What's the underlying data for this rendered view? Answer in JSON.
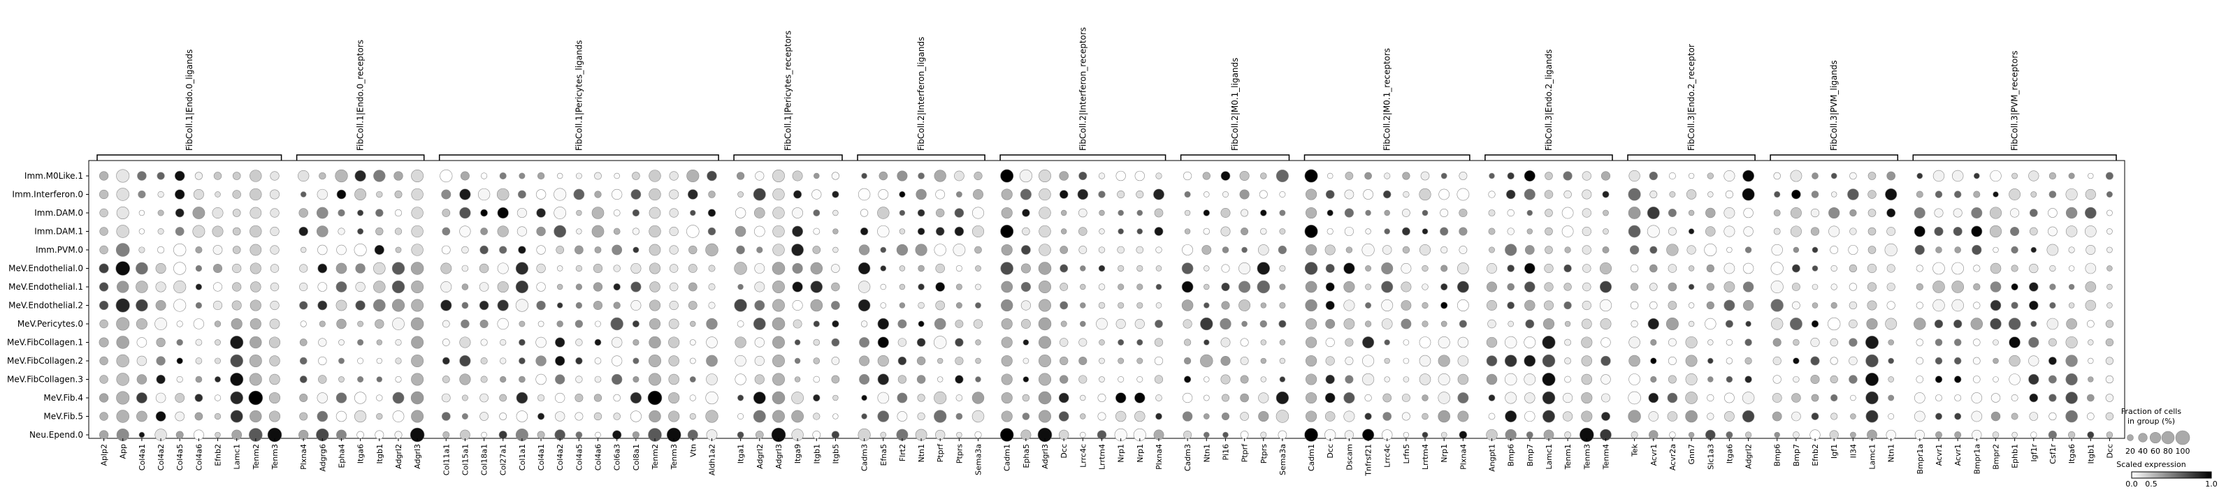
{
  "chart_data": {
    "type": "dotplot",
    "title": "",
    "xlabel": "",
    "ylabel": "",
    "rows": [
      "Imm.M0Like.1",
      "Imm.Interferon.0",
      "Imm.DAM.0",
      "Imm.DAM.1",
      "Imm.PVM.0",
      "MeV.Endothelial.0",
      "MeV.Endothelial.1",
      "MeV.Endothelial.2",
      "MeV.Pericytes.0",
      "MeV.FibCollagen.1",
      "MeV.FibCollagen.2",
      "MeV.FibCollagen.3",
      "MeV.Fib.4",
      "MeV.Fib.5",
      "Neu.Epend.0"
    ],
    "groups": [
      {
        "label": "FibColl.1|Endo.0_ligands",
        "genes": [
          "Aplp2",
          "App",
          "Col4a1",
          "Col4a2",
          "Col4a5",
          "Col4a6",
          "Efnb2",
          "Lamc1",
          "Tenm2",
          "Tenm3"
        ]
      },
      {
        "label": "FibColl.1|Endo.0_receptors",
        "genes": [
          "Plxna4",
          "Adgrg6",
          "Epha4",
          "Itga6",
          "Itgb1",
          "Adgrl2",
          "Adgrl3"
        ]
      },
      {
        "label": "FibColl.1|Pericytes_ligands",
        "genes": [
          "Col11a1",
          "Col15a1",
          "Col18a1",
          "Col27a1",
          "Col1a1",
          "Col4a1",
          "Col4a2",
          "Col4a5",
          "Col4a6",
          "Col6a3",
          "Col8a1",
          "Tenm2",
          "Tenm3",
          "Vtn",
          "Aldh1a2"
        ]
      },
      {
        "label": "FibColl.1|Pericytes_receptors",
        "genes": [
          "Itga1",
          "Adgrl2",
          "Adgrl3",
          "Itga9",
          "Itgb1",
          "Itgb5"
        ]
      },
      {
        "label": "FibColl.2|Interferon_ligands",
        "genes": [
          "Cadm3",
          "Efna5",
          "Flrt2",
          "Ntn1",
          "Ptprf",
          "Ptprs",
          "Sema3a"
        ]
      },
      {
        "label": "FibColl.2|Interferon_receptors",
        "genes": [
          "Cadm1",
          "Epha5",
          "Adgrl3",
          "Dcc",
          "Lrrc4c",
          "Lrrtm4",
          "Nrp1",
          "Nrp1",
          "Plxna4"
        ]
      },
      {
        "label": "FibColl.2|M0.1_ligands",
        "genes": [
          "Cadm3",
          "Ntn1",
          "Pi16",
          "Ptprf",
          "Ptprs",
          "Sema3a"
        ]
      },
      {
        "label": "FibColl.2|M0.1_receptors",
        "genes": [
          "Cadm1",
          "Dcc",
          "Dscam",
          "Tnfrsf21",
          "Lrrc4c",
          "Lrfn5",
          "Lrrtm4",
          "Nrp1",
          "Plxna4"
        ]
      },
      {
        "label": "FibColl.3|Endo.2_ligands",
        "genes": [
          "Angpt1",
          "Bmp6",
          "Bmp7",
          "Lamc1",
          "Tenm1",
          "Tenm3",
          "Tenm4"
        ]
      },
      {
        "label": "FibColl.3|Endo.2_receptor",
        "genes": [
          "Tek",
          "Acvr1",
          "Acvr2a",
          "Gnn7",
          "Slc1a3",
          "Itga6",
          "Adgrl2"
        ]
      },
      {
        "label": "FibColl.3|PVM_ligands",
        "genes": [
          "Bmp6",
          "Bmp7",
          "Efnb2",
          "Igf1",
          "Il34",
          "Lamc1",
          "Ntn1"
        ]
      },
      {
        "label": "FibColl.3|PVM_receptors",
        "genes": [
          "Bmpr1a",
          "Acvr1",
          "Acvr1",
          "Bmpr1a",
          "Bmpr2",
          "Ephb1",
          "Igf1r",
          "Csf1r",
          "Itga6",
          "Itgb1",
          "Dcc"
        ]
      }
    ],
    "size_legend": {
      "title_line1": "Fraction of cells",
      "title_line2": "in group (%)",
      "values": [
        20,
        40,
        60,
        80,
        100
      ]
    },
    "color_legend": {
      "title": "Scaled expression",
      "min_label": "0.0",
      "mid_label": "0.5",
      "max_label": "1.0",
      "min_color": "#ffffff",
      "max_color": "#000000"
    },
    "dots": {
      "Aplp2": [
        [
          0.3,
          0.4
        ],
        [
          0.25,
          0.4
        ],
        [
          0.2,
          0.35
        ],
        [
          0.25,
          0.35
        ],
        [
          0.25,
          0.35
        ],
        [
          0.75,
          0.45
        ],
        [
          0.7,
          0.4
        ],
        [
          0.7,
          0.4
        ],
        [
          0.25,
          0.35
        ],
        [
          0.3,
          0.45
        ],
        [
          0.3,
          0.35
        ],
        [
          0.25,
          0.35
        ],
        [
          0.35,
          0.4
        ],
        [
          0.3,
          0.35
        ],
        [
          0.35,
          0.4
        ]
      ],
      "App": [
        [
          0.1,
          0.85
        ],
        [
          0.12,
          0.8
        ],
        [
          0.1,
          0.75
        ],
        [
          0.15,
          0.8
        ],
        [
          0.5,
          0.9
        ],
        [
          0.95,
          1.0
        ],
        [
          0.4,
          0.7
        ],
        [
          0.85,
          0.95
        ],
        [
          0.3,
          0.85
        ],
        [
          0.35,
          0.8
        ],
        [
          0.25,
          0.8
        ],
        [
          0.25,
          0.8
        ],
        [
          0.3,
          0.85
        ],
        [
          0.3,
          0.8
        ],
        [
          0.45,
          0.75
        ]
      ],
      "Lamc1": [
        [
          0.2,
          0.3
        ],
        [
          0.2,
          0.35
        ],
        [
          0.15,
          0.3
        ],
        [
          0.2,
          0.3
        ],
        [
          0.2,
          0.3
        ],
        [
          0.15,
          0.4
        ],
        [
          0.2,
          0.4
        ],
        [
          0.2,
          0.45
        ],
        [
          0.35,
          0.6
        ],
        [
          0.9,
          0.85
        ],
        [
          0.7,
          0.8
        ],
        [
          0.95,
          0.85
        ],
        [
          0.85,
          0.8
        ],
        [
          0.8,
          0.75
        ],
        [
          0.35,
          0.5
        ]
      ],
      "Tenm2": [
        [
          0.2,
          0.7
        ],
        [
          0.2,
          0.7
        ],
        [
          0.15,
          0.65
        ],
        [
          0.2,
          0.7
        ],
        [
          0.2,
          0.65
        ],
        [
          0.2,
          0.6
        ],
        [
          0.2,
          0.55
        ],
        [
          0.25,
          0.6
        ],
        [
          0.3,
          0.6
        ],
        [
          0.35,
          0.7
        ],
        [
          0.3,
          0.75
        ],
        [
          0.3,
          0.75
        ],
        [
          1.0,
          1.0
        ],
        [
          0.35,
          0.7
        ],
        [
          0.65,
          0.9
        ]
      ],
      "Tenm3": [
        [
          0.1,
          0.4
        ],
        [
          0.1,
          0.45
        ],
        [
          0.1,
          0.4
        ],
        [
          0.1,
          0.4
        ],
        [
          0.1,
          0.4
        ],
        [
          0.1,
          0.35
        ],
        [
          0.1,
          0.35
        ],
        [
          0.1,
          0.4
        ],
        [
          0.15,
          0.5
        ],
        [
          0.2,
          0.6
        ],
        [
          0.2,
          0.55
        ],
        [
          0.2,
          0.55
        ],
        [
          0.25,
          0.6
        ],
        [
          0.25,
          0.6
        ],
        [
          0.95,
          1.0
        ]
      ],
      "Adgrl3": [
        [
          0.15,
          0.75
        ],
        [
          0.15,
          0.7
        ],
        [
          0.15,
          0.7
        ],
        [
          0.15,
          0.7
        ],
        [
          0.15,
          0.7
        ],
        [
          0.35,
          0.8
        ],
        [
          0.3,
          0.75
        ],
        [
          0.3,
          0.75
        ],
        [
          0.35,
          0.8
        ],
        [
          0.35,
          0.75
        ],
        [
          0.3,
          0.75
        ],
        [
          0.3,
          0.75
        ],
        [
          0.4,
          0.8
        ],
        [
          0.35,
          0.75
        ],
        [
          0.95,
          1.0
        ]
      ],
      "Cadm1": [
        [
          1.0,
          0.85
        ],
        [
          0.3,
          0.6
        ],
        [
          0.3,
          0.6
        ],
        [
          1.0,
          0.85
        ],
        [
          0.35,
          0.6
        ],
        [
          0.7,
          0.8
        ],
        [
          0.4,
          0.65
        ],
        [
          0.45,
          0.7
        ],
        [
          0.3,
          0.6
        ],
        [
          0.3,
          0.6
        ],
        [
          0.3,
          0.6
        ],
        [
          0.3,
          0.6
        ],
        [
          0.3,
          0.6
        ],
        [
          0.3,
          0.6
        ],
        [
          1.0,
          0.9
        ]
      ]
    }
  }
}
